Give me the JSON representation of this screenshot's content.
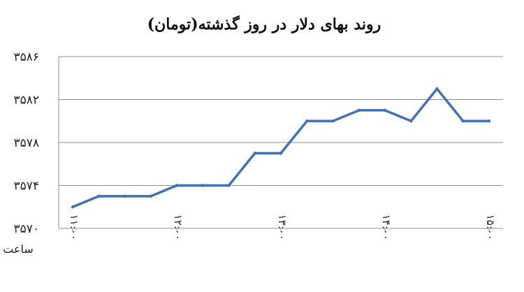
{
  "chart_data": {
    "type": "line",
    "title": "روند بهای دلار در روز گذشته(تومان)",
    "xlabel": "ساعت",
    "ylabel": "",
    "ylim": [
      3570,
      3586
    ],
    "yticks": [
      "۳۵۷۰",
      "۳۵۷۴",
      "۳۵۷۸",
      "۳۵۸۲",
      "۳۵۸۶"
    ],
    "ytick_values": [
      3570,
      3574,
      3578,
      3582,
      3586
    ],
    "xticks": [
      "۱۱:۰۰",
      "۱۲:۰۰",
      "۱۳:۰۰",
      "۱۴:۰۰",
      "۱۵:۰۰"
    ],
    "xtick_positions": [
      0,
      4,
      8,
      12,
      16
    ],
    "x": [
      0,
      1,
      2,
      3,
      4,
      5,
      6,
      7,
      8,
      9,
      10,
      11,
      12,
      13,
      14,
      15,
      16
    ],
    "values": [
      3572,
      3573,
      3573,
      3573,
      3574,
      3574,
      3574,
      3577,
      3577,
      3580,
      3580,
      3581,
      3581,
      3580,
      3583,
      3580,
      3580
    ],
    "grid": true,
    "legend": "none",
    "line_color": "#3f72b5"
  }
}
